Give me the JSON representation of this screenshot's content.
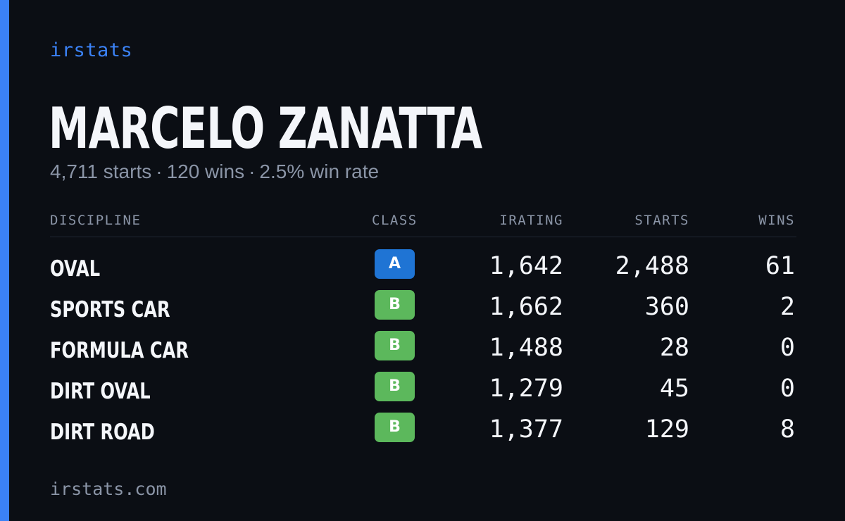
{
  "brand": "irstats",
  "driver": {
    "name": "MARCELO ZANATTA",
    "starts_text": "4,711 starts",
    "wins_text": "120 wins",
    "win_rate_text": "2.5% win rate",
    "separator": "·"
  },
  "table": {
    "headers": {
      "discipline": "DISCIPLINE",
      "class": "CLASS",
      "irating": "IRATING",
      "starts": "STARTS",
      "wins": "WINS"
    },
    "rows": [
      {
        "discipline": "OVAL",
        "class": "A",
        "class_color": "#1f74d4",
        "irating": "1,642",
        "starts": "2,488",
        "wins": "61"
      },
      {
        "discipline": "SPORTS CAR",
        "class": "B",
        "class_color": "#5cb85c",
        "irating": "1,662",
        "starts": "360",
        "wins": "2"
      },
      {
        "discipline": "FORMULA CAR",
        "class": "B",
        "class_color": "#5cb85c",
        "irating": "1,488",
        "starts": "28",
        "wins": "0"
      },
      {
        "discipline": "DIRT OVAL",
        "class": "B",
        "class_color": "#5cb85c",
        "irating": "1,279",
        "starts": "45",
        "wins": "0"
      },
      {
        "discipline": "DIRT ROAD",
        "class": "B",
        "class_color": "#5cb85c",
        "irating": "1,377",
        "starts": "129",
        "wins": "8"
      }
    ]
  },
  "footer": "irstats.com",
  "colors": {
    "accent": "#3b82f6",
    "background": "#0b0e14",
    "class_a": "#1f74d4",
    "class_b": "#5cb85c"
  }
}
